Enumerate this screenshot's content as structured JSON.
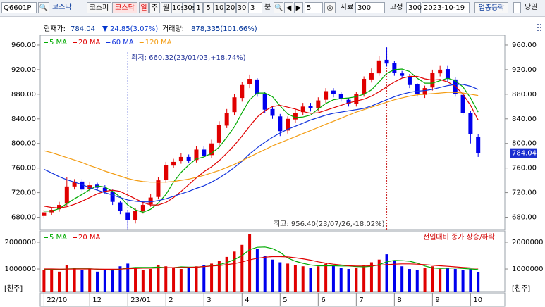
{
  "toolbar": {
    "code": "Q6601P",
    "market": "코스닥",
    "buttons": [
      "코스피",
      "코스닥",
      "일",
      "주",
      "월",
      "10s",
      "30s",
      "1",
      "5",
      "10",
      "20",
      "30"
    ],
    "interval": 3,
    "unit": "분",
    "step": 5,
    "data_label": "자료",
    "data_count": 300,
    "fixed_label": "고정",
    "fixed_count": 300,
    "date": "2023-10-19",
    "industry": "업종등락",
    "today": "당일"
  },
  "chart_data": {
    "type": "candlestick",
    "info": {
      "price_label": "현재가:",
      "change": "24.85(3.07%)",
      "volume_label": "거래량:",
      "volume": "878,335(101.66%)"
    },
    "up_color": "#e00000",
    "down_color": "#0000ee",
    "xlim": [
      -0.5,
      60.5
    ],
    "xticks": [
      {
        "value": 0,
        "label": "22/10"
      },
      {
        "value": 6,
        "label": "12"
      },
      {
        "value": 11,
        "label": "23/01"
      },
      {
        "value": 16,
        "label": "2"
      },
      {
        "value": 21,
        "label": "3"
      },
      {
        "value": 26,
        "label": "4"
      },
      {
        "value": 31,
        "label": "5"
      },
      {
        "value": 36,
        "label": "6"
      },
      {
        "value": 41,
        "label": "7"
      },
      {
        "value": 46,
        "label": "8"
      },
      {
        "value": 51,
        "label": "9"
      },
      {
        "value": 56,
        "label": "10"
      }
    ],
    "ylim": [
      660,
      976
    ],
    "yticks": [
      {
        "value": 680,
        "label": "680.00"
      },
      {
        "value": 720,
        "label": "720.00"
      },
      {
        "value": 760,
        "label": "760.00"
      },
      {
        "value": 800,
        "label": "800.00"
      },
      {
        "value": 840,
        "label": "840.00"
      },
      {
        "value": 880,
        "label": "880.00"
      },
      {
        "value": 920,
        "label": "920.00"
      },
      {
        "value": 960,
        "label": "960.00"
      }
    ],
    "open": [
      682,
      688,
      693,
      702,
      730,
      738,
      726,
      733,
      728,
      722,
      704,
      688,
      676,
      690,
      701,
      713,
      741,
      764,
      771,
      778,
      773,
      790,
      781,
      801,
      829,
      851,
      874,
      896,
      904,
      880,
      856,
      844,
      821,
      839,
      851,
      861,
      857,
      871,
      886,
      880,
      871,
      864,
      881,
      904,
      914,
      936,
      931,
      914,
      909,
      896,
      879,
      891,
      914,
      921,
      904,
      879,
      849,
      810
    ],
    "high": [
      692,
      696,
      705,
      745,
      742,
      742,
      738,
      736,
      732,
      725,
      707,
      692,
      695,
      706,
      718,
      745,
      770,
      775,
      784,
      782,
      796,
      795,
      806,
      836,
      856,
      880,
      900,
      912,
      906,
      884,
      860,
      848,
      844,
      856,
      866,
      866,
      875,
      890,
      890,
      884,
      874,
      884,
      909,
      922,
      942,
      956.4,
      934,
      918,
      913,
      898,
      894,
      920,
      926,
      926,
      908,
      884,
      853,
      815
    ],
    "low": [
      678,
      684,
      689,
      698,
      725,
      720,
      722,
      724,
      718,
      700,
      685,
      660.32,
      670,
      686,
      697,
      709,
      736,
      760,
      767,
      768,
      769,
      776,
      776,
      796,
      825,
      846,
      868,
      890,
      876,
      850,
      840,
      812,
      816,
      834,
      846,
      852,
      852,
      866,
      875,
      868,
      860,
      860,
      876,
      899,
      910,
      925,
      910,
      906,
      890,
      876,
      874,
      886,
      909,
      900,
      876,
      846,
      800,
      778
    ],
    "close": [
      688,
      692,
      700,
      730,
      738,
      725,
      732,
      728,
      722,
      705,
      690,
      675,
      690,
      700,
      712,
      740,
      765,
      770,
      778,
      772,
      790,
      780,
      800,
      830,
      850,
      875,
      895,
      905,
      880,
      855,
      845,
      820,
      840,
      850,
      860,
      858,
      870,
      885,
      880,
      872,
      865,
      880,
      905,
      915,
      935,
      930,
      915,
      910,
      895,
      880,
      890,
      915,
      920,
      905,
      880,
      850,
      815,
      784.04
    ],
    "series": [
      {
        "name": "5 MA",
        "color": "#00aa00",
        "values": [
          690,
          690,
          694,
          702,
          710,
          717,
          725,
          731,
          729,
          722,
          713,
          700,
          692,
          688,
          693,
          703,
          717,
          737,
          753,
          765,
          775,
          778,
          784,
          794,
          810,
          827,
          850,
          871,
          882,
          882,
          876,
          861,
          848,
          842,
          843,
          846,
          856,
          865,
          871,
          873,
          874,
          876,
          880,
          887,
          900,
          914,
          920,
          921,
          917,
          906,
          898,
          898,
          902,
          906,
          902,
          892,
          874,
          851
        ]
      },
      {
        "name": "20 MA",
        "color": "#e00000",
        "values": [
          698,
          696,
          695,
          697,
          701,
          706,
          712,
          718,
          722,
          724,
          722,
          716,
          710,
          704,
          700,
          700,
          704,
          712,
          722,
          733,
          744,
          754,
          762,
          772,
          784,
          797,
          812,
          828,
          843,
          853,
          860,
          862,
          859,
          856,
          852,
          849,
          850,
          854,
          858,
          862,
          866,
          869,
          872,
          877,
          884,
          892,
          900,
          906,
          909,
          909,
          905,
          903,
          904,
          900,
          893,
          880,
          862,
          838
        ]
      },
      {
        "name": "60 MA",
        "color": "#1133dd",
        "values": [
          758,
          752,
          746,
          741,
          737,
          733,
          728,
          724,
          720,
          716,
          712,
          708,
          706,
          705,
          705,
          707,
          710,
          714,
          718,
          722,
          727,
          731,
          737,
          744,
          752,
          761,
          771,
          783,
          793,
          802,
          810,
          817,
          823,
          828,
          833,
          838,
          842,
          846,
          849,
          851,
          853,
          855,
          857,
          861,
          866,
          871,
          876,
          880,
          883,
          885,
          886,
          888,
          891,
          894,
          896,
          896,
          893,
          888
        ]
      },
      {
        "name": "120 MA",
        "color": "#f39c12",
        "values": [
          788,
          785,
          781,
          777,
          773,
          769,
          764,
          760,
          755,
          751,
          747,
          743,
          740,
          738,
          737,
          737,
          737,
          738,
          740,
          742,
          745,
          748,
          752,
          756,
          761,
          766,
          772,
          778,
          784,
          790,
          796,
          801,
          806,
          811,
          816,
          821,
          826,
          831,
          836,
          841,
          846,
          851,
          855,
          859,
          863,
          867,
          871,
          874,
          877,
          879,
          880,
          881,
          882,
          883,
          883,
          882,
          880,
          878
        ]
      }
    ],
    "annotations": {
      "low": "최저: 660.32(23/01/03,+18.74%)",
      "high": "최고: 956.40(23/07/26,-18.02%)"
    },
    "volume": {
      "unit": "[천주]",
      "note": "전일대비 종가 상승/하락",
      "ylim": [
        160000,
        2420000
      ],
      "yticks": [
        1000000,
        2000000
      ],
      "values": [
        950000,
        1000000,
        900000,
        1150000,
        1050000,
        950000,
        1000000,
        900000,
        950000,
        1000000,
        1100000,
        1200000,
        1050000,
        950000,
        1000000,
        1150000,
        1100000,
        1050000,
        1000000,
        1050000,
        1100000,
        1150000,
        1200000,
        1300000,
        1450000,
        1650000,
        1900000,
        2300000,
        1750000,
        1500000,
        1350000,
        1250000,
        1200000,
        1150000,
        1100000,
        1050000,
        1100000,
        1200000,
        1150000,
        1050000,
        1000000,
        1050000,
        1150000,
        1250000,
        1350000,
        1550000,
        1300000,
        1100000,
        1000000,
        950000,
        1050000,
        1100000,
        1000000,
        1050000,
        1000000,
        950000,
        1000000,
        878335
      ],
      "series": [
        {
          "name": "5 MA",
          "color": "#00aa00",
          "values": [
            980000,
            990000,
            980000,
            1000000,
            1010000,
            1010000,
            1010000,
            990000,
            970000,
            960000,
            990000,
            1030000,
            1060000,
            1060000,
            1060000,
            1070000,
            1050000,
            1050000,
            1080000,
            1070000,
            1070000,
            1090000,
            1120000,
            1160000,
            1240000,
            1350000,
            1500000,
            1720000,
            1810000,
            1820000,
            1760000,
            1620000,
            1410000,
            1290000,
            1210000,
            1150000,
            1120000,
            1120000,
            1120000,
            1110000,
            1110000,
            1090000,
            1080000,
            1100000,
            1160000,
            1270000,
            1320000,
            1310000,
            1290000,
            1220000,
            1110000,
            1040000,
            1020000,
            1030000,
            1040000,
            1020000,
            1000000,
            980000
          ]
        },
        {
          "name": "20 MA",
          "color": "#e00000",
          "values": [
            1000000,
            1000000,
            995000,
            995000,
            1000000,
            1000000,
            1000000,
            995000,
            990000,
            990000,
            995000,
            1010000,
            1020000,
            1030000,
            1030000,
            1040000,
            1050000,
            1050000,
            1060000,
            1060000,
            1070000,
            1090000,
            1110000,
            1130000,
            1160000,
            1200000,
            1260000,
            1340000,
            1400000,
            1440000,
            1460000,
            1460000,
            1450000,
            1420000,
            1380000,
            1330000,
            1270000,
            1220000,
            1180000,
            1150000,
            1120000,
            1110000,
            1110000,
            1120000,
            1140000,
            1160000,
            1180000,
            1190000,
            1190000,
            1180000,
            1160000,
            1140000,
            1120000,
            1100000,
            1080000,
            1060000,
            1040000,
            1030000
          ]
        }
      ]
    }
  }
}
